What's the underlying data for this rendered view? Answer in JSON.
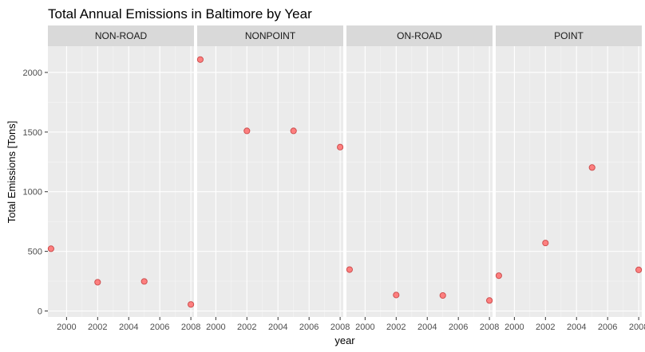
{
  "chart_data": {
    "type": "scatter",
    "title": "Total Annual Emissions in Baltimore by Year",
    "xlabel": "year",
    "ylabel": "Total Emissions [Tons]",
    "x_ticks": [
      2000,
      2002,
      2004,
      2006,
      2008
    ],
    "y_ticks": [
      0,
      500,
      1000,
      1500,
      2000
    ],
    "xlim": [
      1998.8,
      2008.2
    ],
    "ylim": [
      -50,
      2220
    ],
    "grid": true,
    "point_color": "#ff6b6b",
    "point_stroke": "#c94848",
    "panel_background": "#ebebeb",
    "strip_background": "#d9d9d9",
    "panels": [
      {
        "name": "NON-ROAD",
        "x": [
          1999,
          2002,
          2005,
          2008
        ],
        "y": [
          522,
          241,
          248,
          55
        ]
      },
      {
        "name": "NONPOINT",
        "x": [
          1999,
          2002,
          2005,
          2008
        ],
        "y": [
          2108,
          1510,
          1510,
          1374
        ]
      },
      {
        "name": "ON-ROAD",
        "x": [
          1999,
          2002,
          2005,
          2008
        ],
        "y": [
          347,
          134,
          130,
          88
        ]
      },
      {
        "name": "POINT",
        "x": [
          1999,
          2002,
          2005,
          2008
        ],
        "y": [
          296,
          570,
          1203,
          345
        ]
      }
    ]
  }
}
